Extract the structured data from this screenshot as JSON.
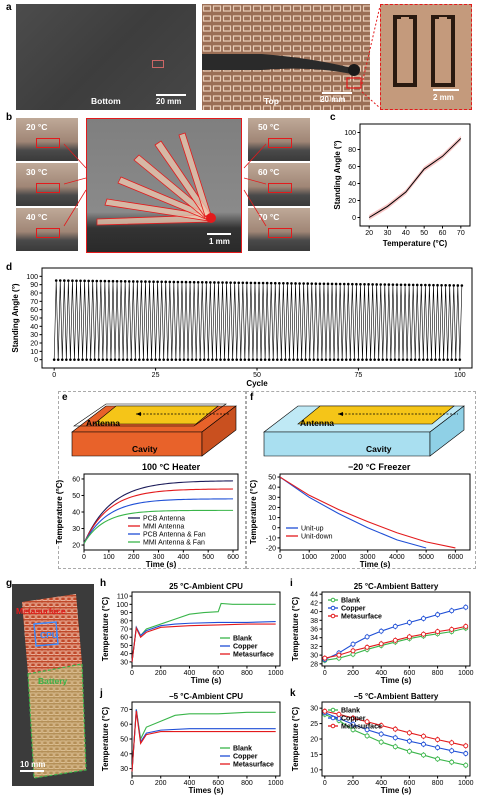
{
  "panel_labels": {
    "a": "a",
    "b": "b",
    "c": "c",
    "d": "d",
    "e": "e",
    "f": "f",
    "g": "g",
    "h": "h",
    "i": "i",
    "j": "j",
    "k": "k"
  },
  "panel_a": {
    "left_label": "Bottom",
    "left_scale": "20 mm",
    "mid_label": "Top",
    "mid_scale": "20 mm",
    "inset_scale": "2 mm"
  },
  "panel_b": {
    "temps_left": [
      "20 °C",
      "30 °C",
      "40 °C"
    ],
    "temps_right": [
      "50 °C",
      "60 °C",
      "70 °C"
    ],
    "center_scale": "1 mm",
    "side_scale": "10 mm"
  },
  "panel_e": {
    "antenna": "Antenna",
    "cavity": "Cavity",
    "title": "100 °C Heater"
  },
  "panel_f": {
    "antenna": "Antenna",
    "cavity": "Cavity",
    "title": "−20 °C Freezer"
  },
  "panel_g": {
    "metasurface": "Metasurface",
    "cpu": "CPU",
    "battery": "Battery",
    "scale": "10 mm"
  },
  "colors": {
    "red": "#e31a1c",
    "blue": "#1f4fd6",
    "green": "#3ab54a",
    "navy": "#1c1c5a",
    "orange": "#e8622a",
    "yellow": "#f5c518",
    "cyan": "#bfe9f5"
  },
  "chart_data": [
    {
      "id": "c",
      "type": "line",
      "x": [
        20,
        30,
        40,
        50,
        60,
        70
      ],
      "y": [
        0,
        13,
        30,
        57,
        72,
        93
      ],
      "xlabel": "Temperature (°C)",
      "ylabel": "Standing Angle (°)",
      "xlim": [
        15,
        75
      ],
      "ylim": [
        -10,
        110
      ],
      "xticks": [
        20,
        30,
        40,
        50,
        60,
        70
      ],
      "yticks": [
        0,
        20,
        40,
        60,
        80,
        100
      ]
    },
    {
      "id": "d",
      "type": "line",
      "cycles": 100,
      "high": [
        95,
        89
      ],
      "low": 0,
      "xlabel": "Cycle",
      "ylabel": "Standing Angle (°)",
      "xlim": [
        -3,
        103
      ],
      "ylim": [
        -10,
        110
      ],
      "xticks": [
        0,
        25,
        50,
        75,
        100
      ],
      "yticks": [
        0,
        10,
        20,
        30,
        40,
        50,
        60,
        70,
        80,
        90,
        100
      ]
    },
    {
      "id": "e",
      "type": "line",
      "xlabel": "Time (s)",
      "ylabel": "Temperature (°C)",
      "xlim": [
        0,
        620
      ],
      "ylim": [
        17,
        63
      ],
      "xticks": [
        0,
        100,
        200,
        300,
        400,
        500,
        600
      ],
      "yticks": [
        20,
        30,
        40,
        50,
        60
      ],
      "series": [
        {
          "name": "PCB Antenna",
          "color": "#1c1c5a",
          "start": 21,
          "end": 59,
          "tau": 110
        },
        {
          "name": "MMI Antenna",
          "color": "#e31a1c",
          "start": 21,
          "end": 54,
          "tau": 100
        },
        {
          "name": "PCB Antenna & Fan",
          "color": "#1f4fd6",
          "start": 21,
          "end": 48,
          "tau": 95
        },
        {
          "name": "MMI Antenna & Fan",
          "color": "#3ab54a",
          "start": 21,
          "end": 41,
          "tau": 80
        }
      ]
    },
    {
      "id": "f",
      "type": "line",
      "xlabel": "Time (s)",
      "ylabel": "Temperature (°C)",
      "xlim": [
        0,
        6500
      ],
      "ylim": [
        -22,
        53
      ],
      "xticks": [
        0,
        1000,
        2000,
        3000,
        4000,
        5000,
        6000
      ],
      "yticks": [
        -20,
        -10,
        0,
        10,
        20,
        30,
        40,
        50
      ],
      "series": [
        {
          "name": "Unit-up",
          "color": "#1f4fd6",
          "x": [
            0,
            1000,
            2000,
            3000,
            4000,
            5000
          ],
          "y": [
            50,
            30,
            14,
            0,
            -12,
            -20
          ]
        },
        {
          "name": "Unit-down",
          "color": "#e31a1c",
          "x": [
            0,
            1000,
            2000,
            3000,
            4000,
            5000,
            6000
          ],
          "y": [
            50,
            32,
            18,
            6,
            -5,
            -14,
            -20
          ]
        }
      ]
    },
    {
      "id": "h",
      "type": "line",
      "title": "25 °C-Ambient CPU",
      "xlabel": "Time (s)",
      "ylabel": "Temperature (°C)",
      "xlim": [
        0,
        1030
      ],
      "ylim": [
        25,
        115
      ],
      "xticks": [
        0,
        200,
        400,
        600,
        800,
        1000
      ],
      "yticks": [
        30,
        40,
        50,
        60,
        70,
        80,
        90,
        100,
        110
      ],
      "series": [
        {
          "name": "Blank",
          "color": "#3ab54a",
          "x": [
            0,
            30,
            60,
            100,
            200,
            300,
            400,
            500,
            600,
            620,
            700,
            800,
            900,
            1000
          ],
          "y": [
            30,
            72,
            62,
            70,
            76,
            82,
            88,
            90,
            91,
            101,
            100,
            100,
            100,
            100
          ]
        },
        {
          "name": "Copper",
          "color": "#1f4fd6",
          "x": [
            0,
            30,
            60,
            100,
            200,
            300,
            400,
            600,
            800,
            1000
          ],
          "y": [
            30,
            72,
            62,
            68,
            74,
            76,
            77,
            78,
            78,
            79
          ]
        },
        {
          "name": "Metasurface",
          "color": "#e31a1c",
          "x": [
            0,
            30,
            60,
            100,
            200,
            400,
            600,
            800,
            1000
          ],
          "y": [
            30,
            71,
            60,
            66,
            72,
            74,
            75,
            76,
            76
          ]
        }
      ]
    },
    {
      "id": "i",
      "type": "line",
      "title": "25 °C-Ambient Battery",
      "xlabel": "Time (s)",
      "ylabel": "Temperature (°C)",
      "xlim": [
        -20,
        1030
      ],
      "ylim": [
        27.5,
        44.5
      ],
      "xticks": [
        0,
        200,
        400,
        600,
        800,
        1000
      ],
      "yticks": [
        28,
        30,
        32,
        34,
        36,
        38,
        40,
        42,
        44
      ],
      "series": [
        {
          "name": "Blank",
          "color": "#3ab54a",
          "x": [
            0,
            100,
            200,
            300,
            400,
            500,
            600,
            700,
            800,
            900,
            1000
          ],
          "y": [
            28.8,
            29.3,
            30.2,
            31.3,
            32.2,
            33,
            33.8,
            34.4,
            34.9,
            35.4,
            36.2
          ]
        },
        {
          "name": "Copper",
          "color": "#1f4fd6",
          "x": [
            0,
            100,
            200,
            300,
            400,
            500,
            600,
            700,
            800,
            900,
            1000
          ],
          "y": [
            29,
            30.5,
            32.5,
            34.2,
            35.5,
            36.6,
            37.5,
            38.4,
            39.3,
            40.2,
            41
          ]
        },
        {
          "name": "Metasurface",
          "color": "#e31a1c",
          "x": [
            0,
            100,
            200,
            300,
            400,
            500,
            600,
            700,
            800,
            900,
            1000
          ],
          "y": [
            29.3,
            30,
            31,
            31.8,
            32.6,
            33.4,
            34.2,
            34.8,
            35.4,
            35.9,
            36.6
          ]
        }
      ]
    },
    {
      "id": "j",
      "type": "line",
      "title": "−5 °C-Ambient CPU",
      "xlabel": "Times (s)",
      "ylabel": "Temperature (°C)",
      "xlim": [
        0,
        1030
      ],
      "ylim": [
        25,
        75
      ],
      "xticks": [
        0,
        200,
        400,
        600,
        800,
        1000
      ],
      "yticks": [
        30,
        40,
        50,
        60,
        70
      ],
      "series": [
        {
          "name": "Blank",
          "color": "#3ab54a",
          "x": [
            0,
            30,
            60,
            100,
            200,
            300,
            400,
            600,
            800,
            1000
          ],
          "y": [
            28,
            70,
            50,
            58,
            62,
            66,
            67,
            67,
            68,
            68
          ]
        },
        {
          "name": "Copper",
          "color": "#1f4fd6",
          "x": [
            0,
            30,
            60,
            100,
            200,
            400,
            600,
            800,
            1000
          ],
          "y": [
            28,
            70,
            48,
            54,
            56,
            57,
            57,
            57,
            57
          ]
        },
        {
          "name": "Metasurface",
          "color": "#e31a1c",
          "x": [
            0,
            30,
            60,
            100,
            200,
            400,
            600,
            800,
            1000
          ],
          "y": [
            28,
            69,
            47,
            53,
            55,
            55,
            55,
            55,
            55
          ]
        }
      ]
    },
    {
      "id": "k",
      "type": "line",
      "title": "−5 °C-Ambient Battery",
      "xlabel": "Time (s)",
      "ylabel": "Temperature (°C)",
      "xlim": [
        -20,
        1030
      ],
      "ylim": [
        8,
        32
      ],
      "xticks": [
        0,
        200,
        400,
        600,
        800,
        1000
      ],
      "yticks": [
        10,
        15,
        20,
        25,
        30
      ],
      "series": [
        {
          "name": "Blank",
          "color": "#3ab54a",
          "x": [
            0,
            100,
            200,
            300,
            400,
            500,
            600,
            700,
            800,
            900,
            1000
          ],
          "y": [
            28,
            26,
            23,
            21,
            19,
            17.5,
            16,
            14.8,
            13.5,
            12.5,
            11.5
          ]
        },
        {
          "name": "Copper",
          "color": "#1f4fd6",
          "x": [
            0,
            100,
            200,
            300,
            400,
            500,
            600,
            700,
            800,
            900,
            1000
          ],
          "y": [
            28.5,
            26.7,
            24.8,
            23,
            21.6,
            20.4,
            19.3,
            18.3,
            17.2,
            16.2,
            15.3
          ]
        },
        {
          "name": "Metasurface",
          "color": "#e31a1c",
          "x": [
            0,
            100,
            200,
            300,
            400,
            500,
            600,
            700,
            800,
            900,
            1000
          ],
          "y": [
            29,
            28,
            26.8,
            25.6,
            24.4,
            23.2,
            22,
            20.9,
            19.8,
            18.8,
            17.8
          ]
        }
      ]
    }
  ]
}
